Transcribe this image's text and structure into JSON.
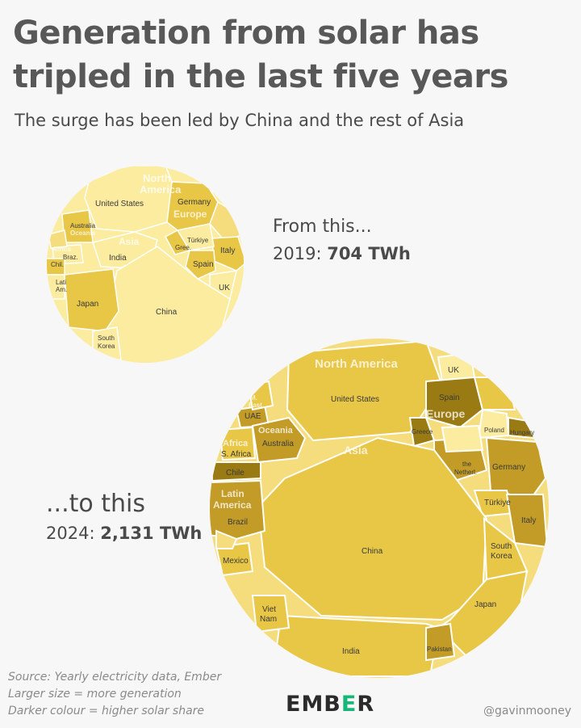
{
  "title": "Generation from solar has tripled in the last five years",
  "subtitle": "The surge has been led by China and the rest of Asia",
  "callouts": {
    "y2019": {
      "head": "From this...",
      "year_prefix": "2019: ",
      "total": "704 TWh"
    },
    "y2024": {
      "head": "...to this",
      "year_prefix": "2024: ",
      "total": "2,131 TWh"
    }
  },
  "footer": {
    "notes": [
      "Source: Yearly electricity data, Ember",
      "Larger size = more generation",
      "Darker colour = higher solar share"
    ],
    "logo": {
      "left": "EMB",
      "mark": "E",
      "right": "R"
    },
    "handle": "@gavinmooney"
  },
  "colors": {
    "background": "#f7f7f7",
    "light": "#fbeca0",
    "mid": "#e8c646",
    "dark": "#c29c26",
    "darkest": "#9a7a12",
    "border": "#ffffff",
    "brand_accent": "#16b779"
  },
  "chart_data": [
    {
      "type": "voronoi-treemap",
      "year": "2019",
      "total": "704 TWh",
      "regions": [
        "North America",
        "Europe",
        "Asia",
        "Oceania",
        "Africa",
        "Latin America"
      ],
      "labeled_cells": [
        {
          "label": "United States",
          "region": "North America",
          "shade": "light"
        },
        {
          "label": "Germany",
          "region": "Europe",
          "shade": "mid"
        },
        {
          "label": "Italy",
          "region": "Europe",
          "shade": "mid"
        },
        {
          "label": "Spain",
          "region": "Europe",
          "shade": "mid"
        },
        {
          "label": "UK",
          "region": "Europe",
          "shade": "light"
        },
        {
          "label": "Türkiye",
          "region": "Europe",
          "shade": "light"
        },
        {
          "label": "Gree.",
          "region": "Europe",
          "shade": "mid"
        },
        {
          "label": "India",
          "region": "Asia",
          "shade": "light"
        },
        {
          "label": "China",
          "region": "Asia",
          "shade": "light"
        },
        {
          "label": "Japan",
          "region": "Asia",
          "shade": "mid"
        },
        {
          "label": "South Korea",
          "region": "Asia",
          "shade": "light"
        },
        {
          "label": "Australia",
          "region": "Oceania",
          "shade": "mid"
        },
        {
          "label": "Braz.",
          "region": "Latin America",
          "shade": "light"
        },
        {
          "label": "Chil.",
          "region": "Latin America",
          "shade": "mid"
        },
        {
          "label": "Lati Am.",
          "region": "Latin America",
          "shade": "light"
        }
      ]
    },
    {
      "type": "voronoi-treemap",
      "year": "2024",
      "total": "2,131 TWh",
      "regions": [
        "North America",
        "Europe",
        "Asia",
        "Oceania",
        "Africa",
        "Latin America",
        "M. East"
      ],
      "labeled_cells": [
        {
          "label": "United States",
          "region": "North America",
          "shade": "mid"
        },
        {
          "label": "UK",
          "region": "Europe",
          "shade": "light"
        },
        {
          "label": "Spain",
          "region": "Europe",
          "shade": "darkest"
        },
        {
          "label": "Greece",
          "region": "Europe",
          "shade": "darkest"
        },
        {
          "label": "Poland",
          "region": "Europe",
          "shade": "mid"
        },
        {
          "label": "Hungary",
          "region": "Europe",
          "shade": "darkest"
        },
        {
          "label": "the Netherl.",
          "region": "Europe",
          "shade": "dark"
        },
        {
          "label": "Germany",
          "region": "Europe",
          "shade": "dark"
        },
        {
          "label": "Türkiye",
          "region": "Europe",
          "shade": "mid"
        },
        {
          "label": "Italy",
          "region": "Europe",
          "shade": "dark"
        },
        {
          "label": "China",
          "region": "Asia",
          "shade": "mid"
        },
        {
          "label": "India",
          "region": "Asia",
          "shade": "mid"
        },
        {
          "label": "Japan",
          "region": "Asia",
          "shade": "mid"
        },
        {
          "label": "South Korea",
          "region": "Asia",
          "shade": "mid"
        },
        {
          "label": "Viet Nam",
          "region": "Asia",
          "shade": "mid"
        },
        {
          "label": "Pakistan",
          "region": "Asia",
          "shade": "dark"
        },
        {
          "label": "UAE",
          "region": "M. East",
          "shade": "dark"
        },
        {
          "label": "Australia",
          "region": "Oceania",
          "shade": "dark"
        },
        {
          "label": "S. Africa",
          "region": "Africa",
          "shade": "mid"
        },
        {
          "label": "Chile",
          "region": "Latin America",
          "shade": "darkest"
        },
        {
          "label": "Brazil",
          "region": "Latin America",
          "shade": "dark"
        },
        {
          "label": "Mexico",
          "region": "Latin America",
          "shade": "mid"
        }
      ]
    }
  ]
}
